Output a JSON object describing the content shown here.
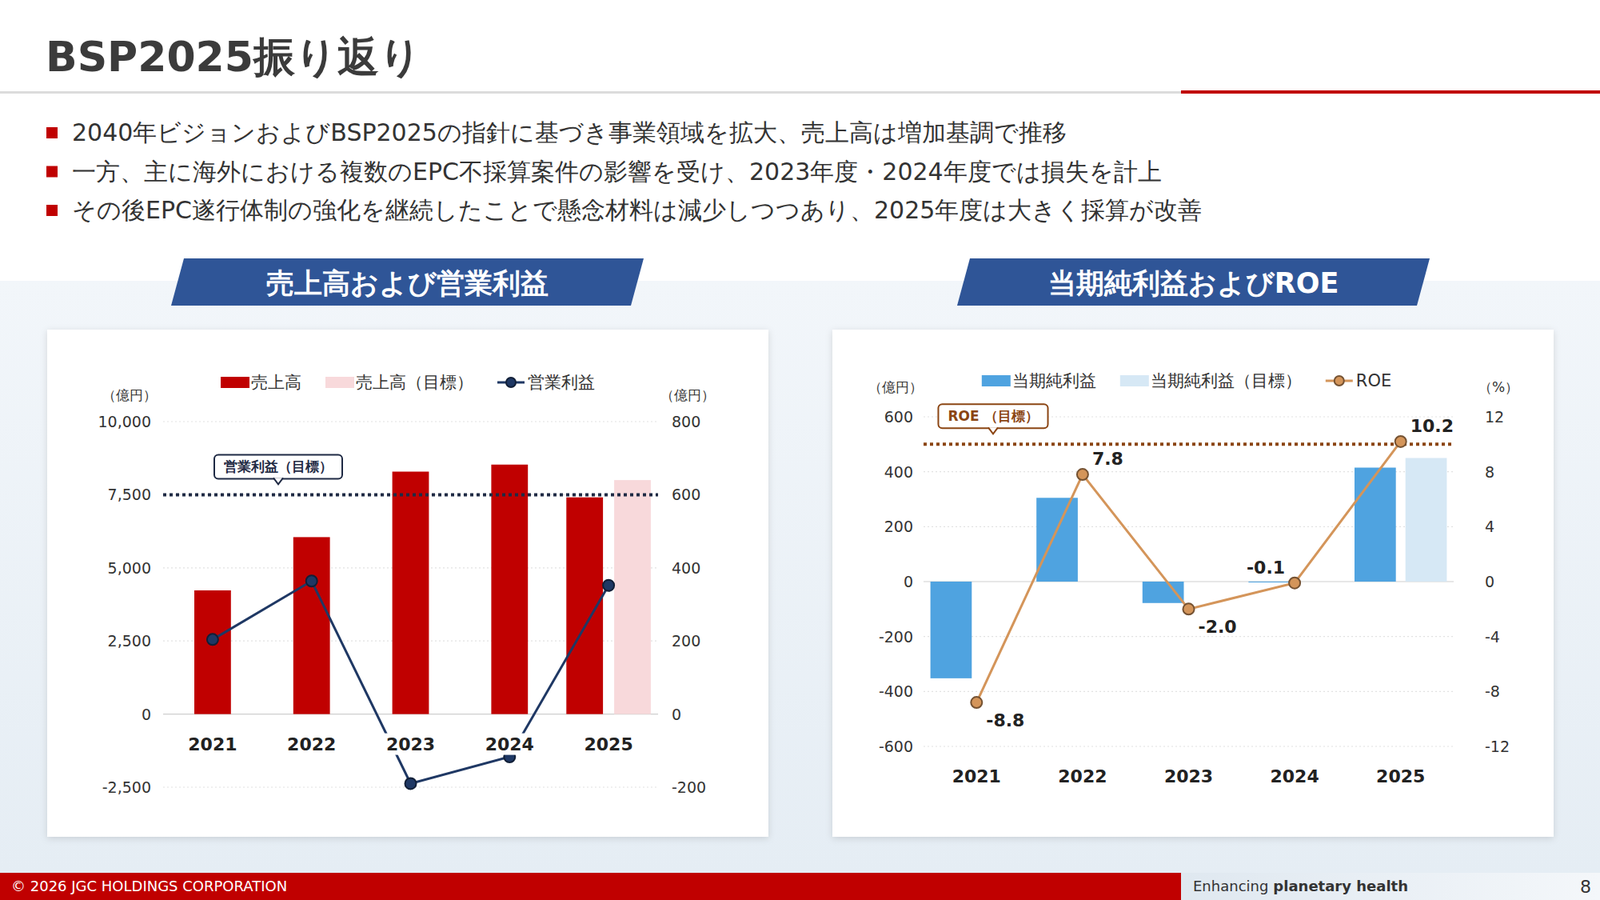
{
  "page": {
    "title": "BSP2025振り返り",
    "bullets": [
      "2040年ビジョンおよびBSP2025の指針に基づき事業領域を拡大、売上高は増加基調で推移",
      "一方、主に海外における複数のEPC不採算案件の影響を受け、2023年度・2024年度では損失を計上",
      "その後EPC遂行体制の強化を継続したことで懸念材料は減少しつつあり、2025年度は大きく採算が改善"
    ],
    "footer": "© 2026 JGC HOLDINGS CORPORATION",
    "tagline_1": "Enhancing",
    "tagline_2": "planetary health",
    "page_number": 8
  },
  "chart_data": [
    {
      "type": "bar",
      "title": "売上高および営業利益",
      "categories": [
        "2021",
        "2022",
        "2023",
        "2024",
        "2025"
      ],
      "y_label": "（億円）",
      "y2_label": "（億円）",
      "ylim": [
        -2500,
        10000
      ],
      "yticks": [
        {
          "value": -2500,
          "label": "-2,500"
        },
        0,
        {
          "value": 2500,
          "label": "2,500"
        },
        {
          "value": 5000,
          "label": "5,000"
        },
        {
          "value": 7500,
          "label": "7,500"
        },
        {
          "value": 10000,
          "label": "10,000"
        }
      ],
      "y2lim": [
        -200,
        800
      ],
      "y2ticks": [
        -200,
        0,
        200,
        400,
        600,
        800
      ],
      "grid": true,
      "legend": "top",
      "series": [
        {
          "name": "売上高",
          "type": "bar",
          "color": "#c00000",
          "values": [
            4230,
            6050,
            8290,
            8530,
            7410
          ]
        },
        {
          "name": "売上高（目標）",
          "type": "bar",
          "color": "#f8d9db",
          "values": [
            null,
            null,
            null,
            null,
            8000
          ]
        },
        {
          "name": "営業利益",
          "type": "line",
          "axis": "y2",
          "color": "#1f3864",
          "marker": "circle",
          "values": [
            204,
            364,
            -190,
            -117,
            352
          ]
        }
      ],
      "reference_lines": [
        {
          "label": "営業利益（目標）",
          "value": 600,
          "axis": "y2",
          "color": "#1f2a44",
          "line_style": "dotted"
        }
      ]
    },
    {
      "type": "bar",
      "title": "当期純利益およびROE",
      "categories": [
        "2021",
        "2022",
        "2023",
        "2024",
        "2025"
      ],
      "y_label": "（億円）",
      "y2_label": "（%）",
      "ylim": [
        -600,
        600
      ],
      "yticks": [
        -600,
        -400,
        -200,
        0,
        200,
        400,
        600
      ],
      "y2lim": [
        -12,
        12
      ],
      "y2ticks": [
        -12,
        -8,
        -4,
        0,
        4,
        8,
        12
      ],
      "grid": true,
      "legend": "top",
      "series": [
        {
          "name": "当期純利益",
          "type": "bar",
          "color": "#4fa3e0",
          "values": [
            -352,
            305,
            -78,
            -3,
            415
          ]
        },
        {
          "name": "当期純利益（目標）",
          "type": "bar",
          "color": "#d6e8f5",
          "values": [
            null,
            null,
            null,
            null,
            450
          ]
        },
        {
          "name": "ROE",
          "type": "line",
          "axis": "y2",
          "color": "#d4955a",
          "marker": "circle",
          "data_labels": true,
          "values": [
            -8.8,
            7.8,
            -2.0,
            -0.1,
            10.2
          ],
          "value_labels": [
            "-8.8",
            "7.8",
            "-2.0",
            "-0.1",
            "10.2"
          ]
        }
      ],
      "reference_lines": [
        {
          "label": "ROE （目標）",
          "value": 10,
          "axis": "y2",
          "color": "#8b4513",
          "line_style": "dotted"
        }
      ]
    }
  ]
}
